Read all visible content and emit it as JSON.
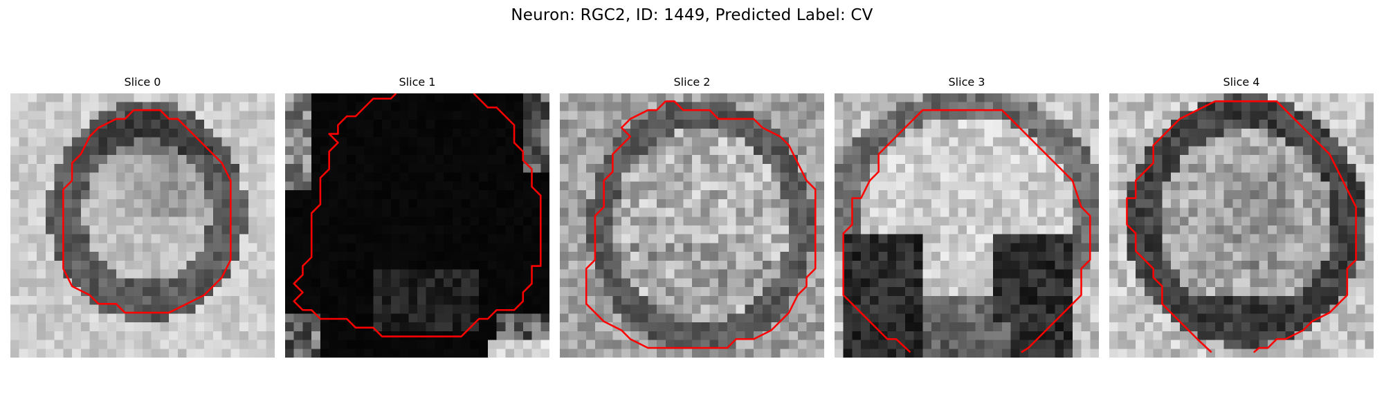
{
  "figure": {
    "title": "Neuron: RGC2, ID: 1449, Predicted Label: CV",
    "contour_color": "#ff0000"
  },
  "panels": [
    {
      "title": "Slice 0",
      "type": "ring"
    },
    {
      "title": "Slice 1",
      "type": "dark"
    },
    {
      "title": "Slice 2",
      "type": "bright"
    },
    {
      "title": "Slice 3",
      "type": "bright-bottom-dark"
    },
    {
      "title": "Slice 4",
      "type": "ring-dark"
    }
  ]
}
